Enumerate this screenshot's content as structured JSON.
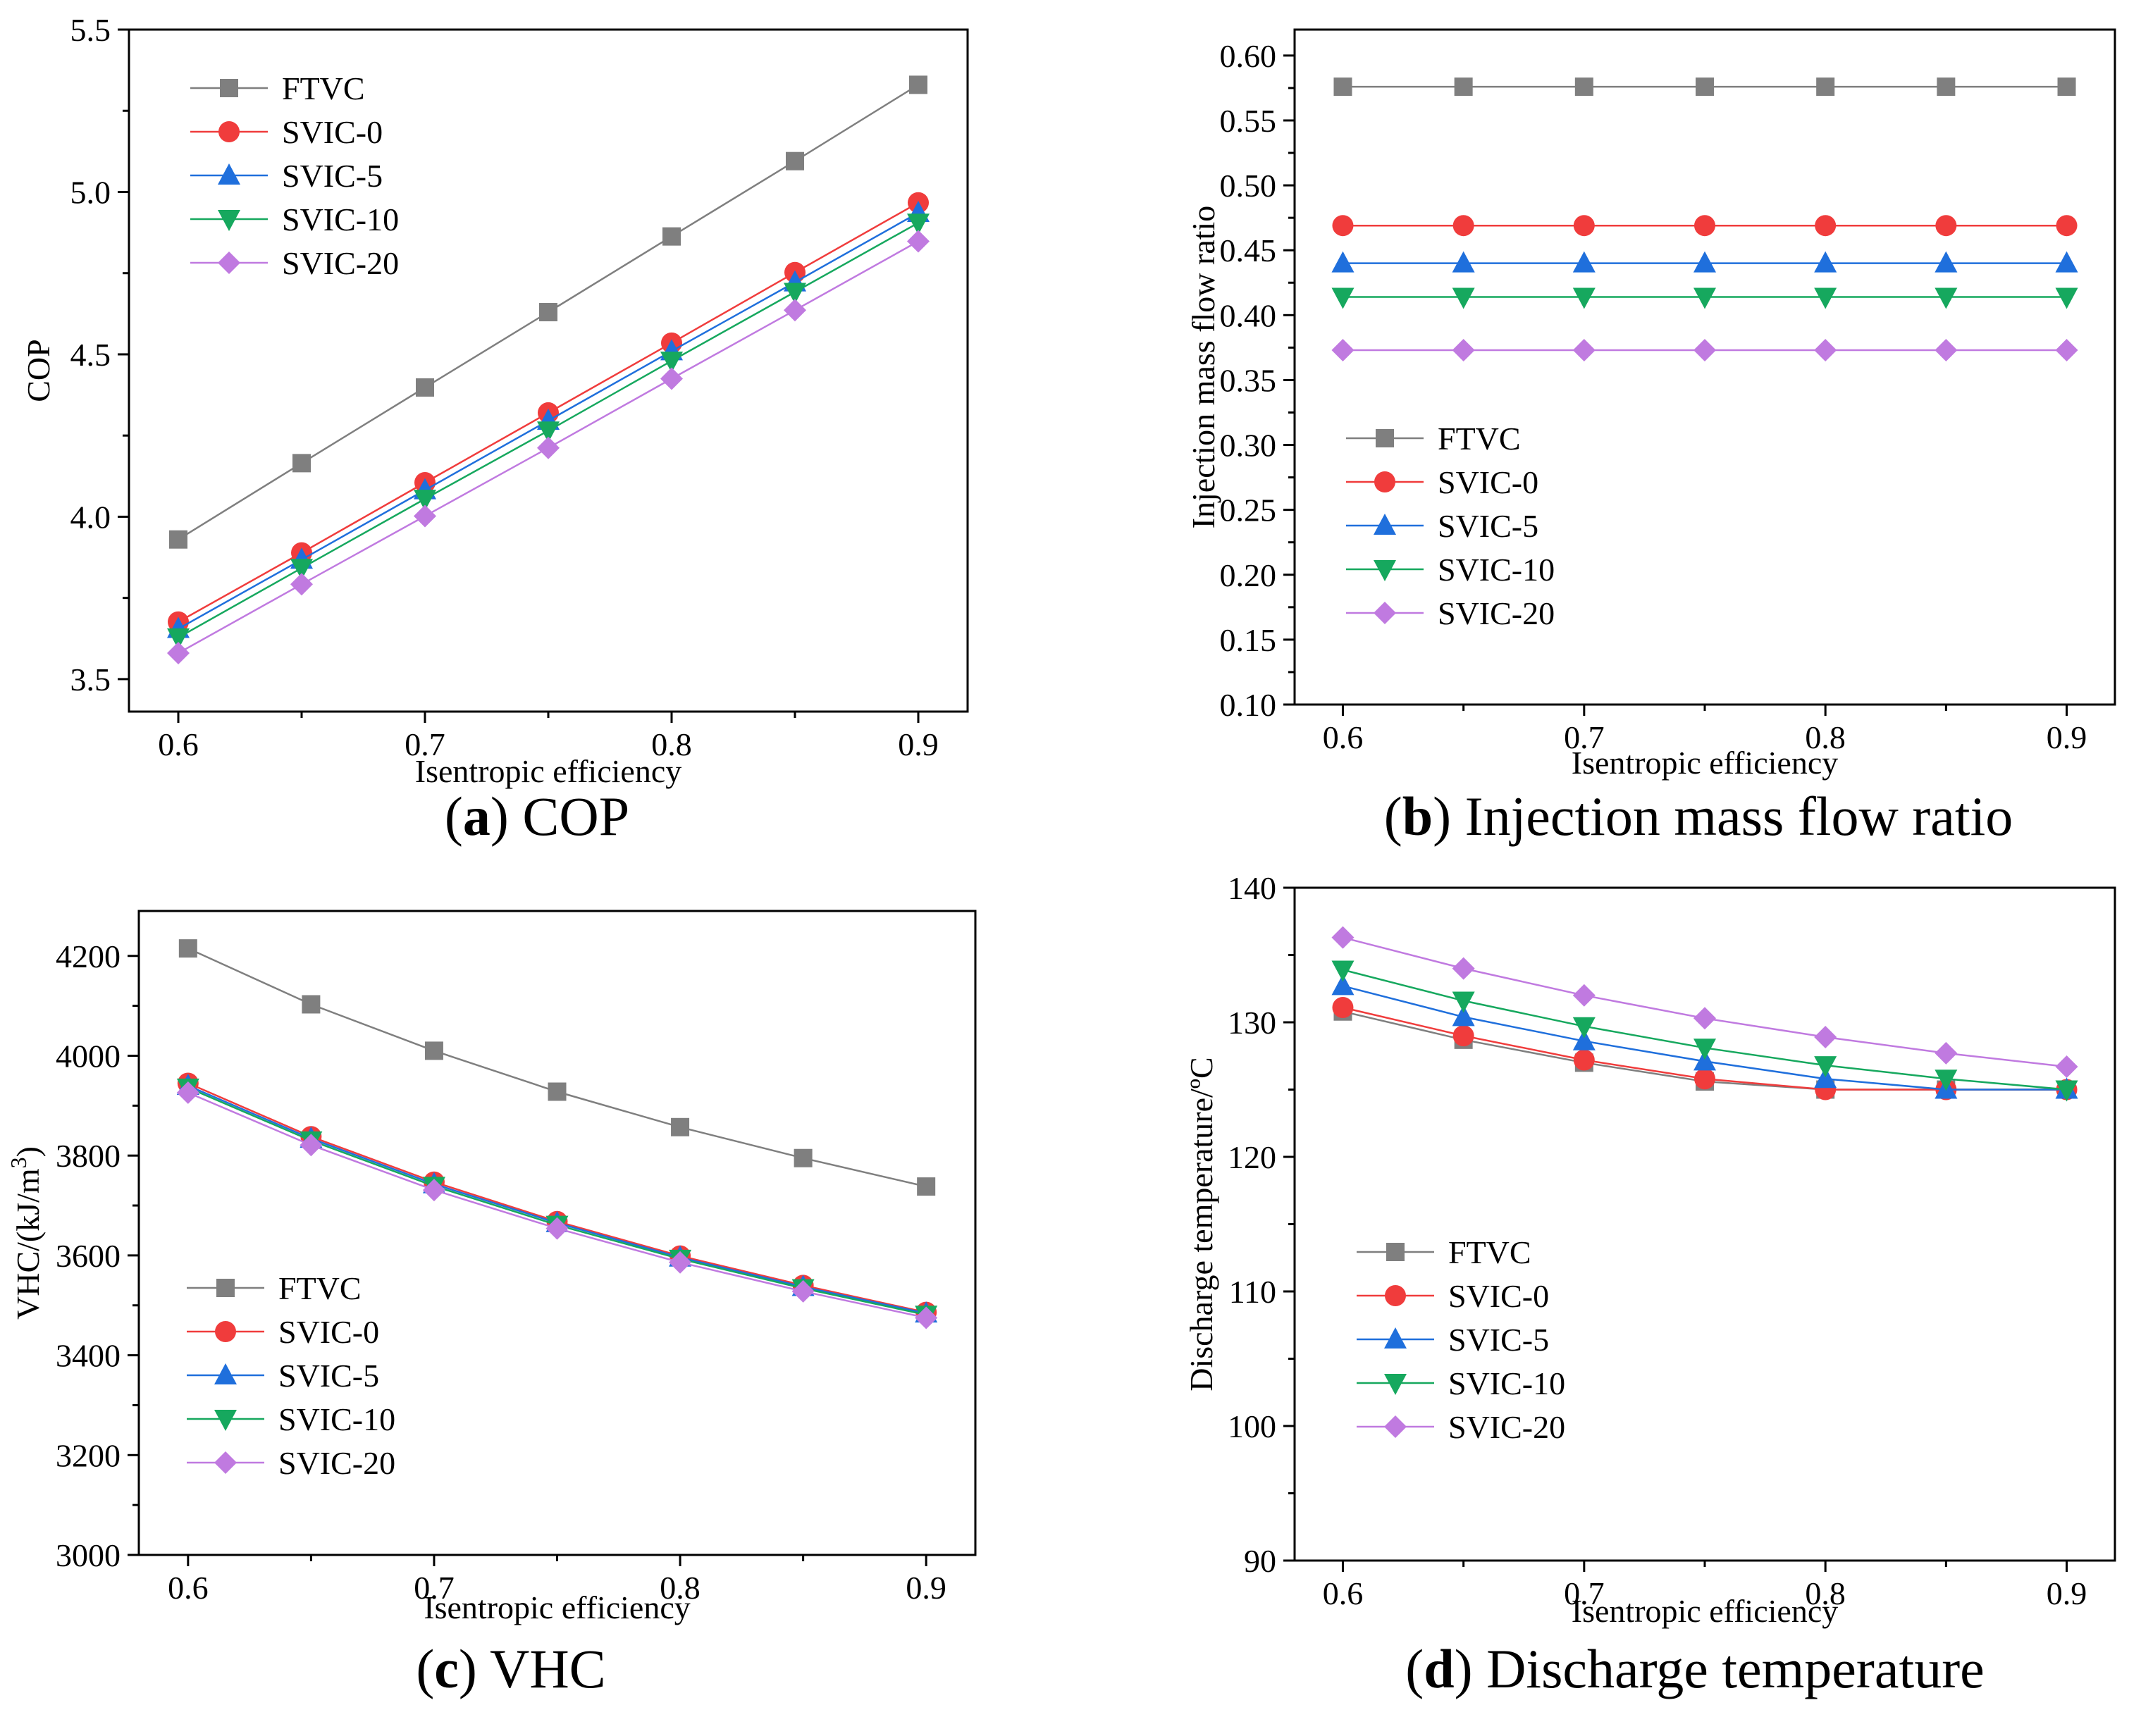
{
  "figure": {
    "series_colors": {
      "FTVC": "#7f7f7f",
      "SVIC-0": "#f03c3c",
      "SVIC-5": "#1f6fdc",
      "SVIC-10": "#16a85e",
      "SVIC-20": "#c07ae0"
    },
    "series_markers": {
      "FTVC": "square",
      "SVIC-0": "circle",
      "SVIC-5": "triangle-up",
      "SVIC-10": "triangle-down",
      "SVIC-20": "diamond"
    }
  },
  "chart_data": [
    {
      "id": "a",
      "type": "line",
      "caption_letter": "a",
      "caption_text": "COP",
      "xlabel": "Isentropic efficiency",
      "ylabel": "COP",
      "x": [
        0.6,
        0.65,
        0.7,
        0.75,
        0.8,
        0.85,
        0.9
      ],
      "xticks": [
        0.6,
        0.7,
        0.8,
        0.9
      ],
      "xtick_labels": [
        "0.6",
        "0.7",
        "0.8",
        "0.9"
      ],
      "xlim": [
        0.58,
        0.92
      ],
      "yticks": [
        3.5,
        4.0,
        4.5,
        5.0,
        5.5
      ],
      "ytick_labels": [
        "3.5",
        "4.0",
        "4.5",
        "5.0",
        "5.5"
      ],
      "ylim": [
        3.4,
        5.5
      ],
      "legend_position": "top-left",
      "series": [
        {
          "name": "FTVC",
          "values": [
            3.93,
            4.165,
            4.398,
            4.63,
            4.863,
            5.095,
            5.33
          ]
        },
        {
          "name": "SVIC-0",
          "values": [
            3.676,
            3.889,
            4.105,
            4.32,
            4.535,
            4.752,
            4.967
          ]
        },
        {
          "name": "SVIC-5",
          "values": [
            3.655,
            3.868,
            4.082,
            4.296,
            4.51,
            4.722,
            4.936
          ]
        },
        {
          "name": "SVIC-10",
          "values": [
            3.628,
            3.842,
            4.055,
            4.265,
            4.48,
            4.692,
            4.905
          ]
        },
        {
          "name": "SVIC-20",
          "values": [
            3.58,
            3.792,
            4.002,
            4.212,
            4.425,
            4.636,
            4.848
          ]
        }
      ]
    },
    {
      "id": "b",
      "type": "line",
      "caption_letter": "b",
      "caption_text": "Injection mass flow ratio",
      "xlabel": "Isentropic efficiency",
      "ylabel": "Injection mass flow ratio",
      "x": [
        0.6,
        0.65,
        0.7,
        0.75,
        0.8,
        0.85,
        0.9
      ],
      "xticks": [
        0.6,
        0.7,
        0.8,
        0.9
      ],
      "xtick_labels": [
        "0.6",
        "0.7",
        "0.8",
        "0.9"
      ],
      "xlim": [
        0.58,
        0.92
      ],
      "yticks": [
        0.1,
        0.15,
        0.2,
        0.25,
        0.3,
        0.35,
        0.4,
        0.45,
        0.5,
        0.55,
        0.6
      ],
      "ytick_labels": [
        "0.10",
        "0.15",
        "0.20",
        "0.25",
        "0.30",
        "0.35",
        "0.40",
        "0.45",
        "0.50",
        "0.55",
        "0.60"
      ],
      "ylim": [
        0.1,
        0.62
      ],
      "legend_position": "bottom-left",
      "series": [
        {
          "name": "FTVC",
          "values": [
            0.576,
            0.576,
            0.576,
            0.576,
            0.576,
            0.576,
            0.576
          ]
        },
        {
          "name": "SVIC-0",
          "values": [
            0.469,
            0.469,
            0.469,
            0.469,
            0.469,
            0.469,
            0.469
          ]
        },
        {
          "name": "SVIC-5",
          "values": [
            0.44,
            0.44,
            0.44,
            0.44,
            0.44,
            0.44,
            0.44
          ]
        },
        {
          "name": "SVIC-10",
          "values": [
            0.414,
            0.414,
            0.414,
            0.414,
            0.414,
            0.414,
            0.414
          ]
        },
        {
          "name": "SVIC-20",
          "values": [
            0.373,
            0.373,
            0.373,
            0.373,
            0.373,
            0.373,
            0.373
          ]
        }
      ]
    },
    {
      "id": "c",
      "type": "line",
      "caption_letter": "c",
      "caption_text": "VHC",
      "xlabel": "Isentropic efficiency",
      "ylabel": "VHC/(kJ/m",
      "ylabel_superscript": "3",
      "ylabel_suffix": ")",
      "x": [
        0.6,
        0.65,
        0.7,
        0.75,
        0.8,
        0.85,
        0.9
      ],
      "xticks": [
        0.6,
        0.7,
        0.8,
        0.9
      ],
      "xtick_labels": [
        "0.6",
        "0.7",
        "0.8",
        "0.9"
      ],
      "xlim": [
        0.58,
        0.92
      ],
      "yticks": [
        3000,
        3200,
        3400,
        3600,
        3800,
        4000,
        4200
      ],
      "ytick_labels": [
        "3000",
        "3200",
        "3400",
        "3600",
        "3800",
        "4000",
        "4200"
      ],
      "ylim": [
        3000,
        4290
      ],
      "legend_position": "bottom-left",
      "series": [
        {
          "name": "FTVC",
          "values": [
            4215,
            4103,
            4010,
            3928,
            3857,
            3795,
            3738
          ]
        },
        {
          "name": "SVIC-0",
          "values": [
            3945,
            3838,
            3747,
            3668,
            3599,
            3540,
            3486
          ]
        },
        {
          "name": "SVIC-5",
          "values": [
            3940,
            3834,
            3743,
            3665,
            3596,
            3537,
            3484
          ]
        },
        {
          "name": "SVIC-10",
          "values": [
            3936,
            3830,
            3739,
            3661,
            3593,
            3534,
            3481
          ]
        },
        {
          "name": "SVIC-20",
          "values": [
            3926,
            3821,
            3731,
            3654,
            3586,
            3528,
            3475
          ]
        }
      ]
    },
    {
      "id": "d",
      "type": "line",
      "caption_letter": "d",
      "caption_text": "Discharge temperature",
      "xlabel": "Isentropic efficiency",
      "ylabel": "Discharge temperature/ºC",
      "x": [
        0.6,
        0.65,
        0.7,
        0.75,
        0.8,
        0.85,
        0.9
      ],
      "xticks": [
        0.6,
        0.7,
        0.8,
        0.9
      ],
      "xtick_labels": [
        "0.6",
        "0.7",
        "0.8",
        "0.9"
      ],
      "xlim": [
        0.58,
        0.92
      ],
      "yticks": [
        90,
        100,
        110,
        120,
        130,
        140
      ],
      "ytick_labels": [
        "90",
        "100",
        "110",
        "120",
        "130",
        "140"
      ],
      "ylim": [
        90,
        140
      ],
      "legend_position": "bottom-left",
      "series": [
        {
          "name": "FTVC",
          "values": [
            130.8,
            128.7,
            127.0,
            125.6,
            125.0,
            125.0,
            125.0
          ]
        },
        {
          "name": "SVIC-0",
          "values": [
            131.1,
            129.0,
            127.2,
            125.8,
            125.0,
            125.0,
            125.0
          ]
        },
        {
          "name": "SVIC-5",
          "values": [
            132.7,
            130.4,
            128.6,
            127.1,
            125.8,
            125.0,
            125.0
          ]
        },
        {
          "name": "SVIC-10",
          "values": [
            133.9,
            131.6,
            129.7,
            128.1,
            126.8,
            125.8,
            125.0
          ]
        },
        {
          "name": "SVIC-20",
          "values": [
            136.3,
            134.0,
            132.0,
            130.3,
            128.9,
            127.7,
            126.7
          ]
        }
      ]
    }
  ]
}
